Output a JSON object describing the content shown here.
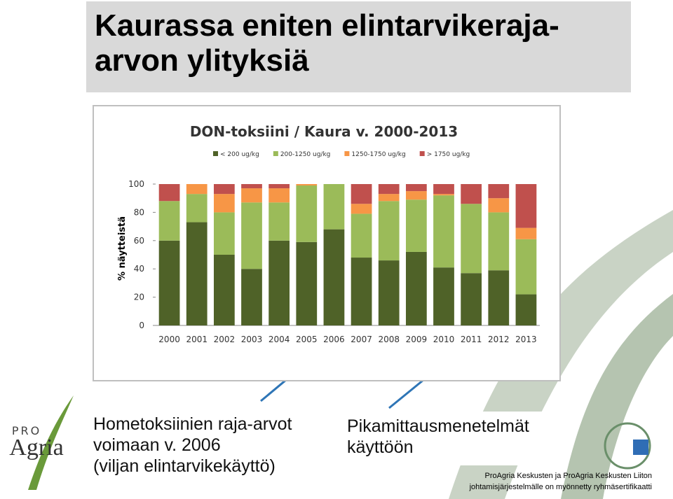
{
  "slide": {
    "title": "Kaurassa eniten elintarvikeraja-arvon ylityksiä",
    "note1": [
      "Hometoksiinien raja-arvot",
      "voimaan v. 2006",
      "(viljan elintarvikekäyttö)"
    ],
    "note2": [
      "Pikamittausmenetelmät",
      "käyttöön"
    ],
    "footer": [
      "ProAgria Keskusten ja ProAgria Keskusten Liiton",
      "johtamisjärjestelmälle on myönnetty ryhmäsertifikaatti"
    ],
    "logo": [
      "PRO",
      "Agria"
    ]
  },
  "chart_data": {
    "type": "stacked-bar",
    "title": "DON-toksiini / Kaura v. 2000-2013",
    "ylabel": "% näytteistä",
    "categories": [
      "2000",
      "2001",
      "2002",
      "2003",
      "2004",
      "2005",
      "2006",
      "2007",
      "2008",
      "2009",
      "2010",
      "2011",
      "2012",
      "2013"
    ],
    "series": [
      {
        "name": "< 200 ug/kg",
        "color": "#4f6228",
        "values": [
          60,
          73,
          50,
          40,
          60,
          59,
          68,
          48,
          46,
          52,
          41,
          37,
          39,
          22
        ]
      },
      {
        "name": "200-1250 ug/kg",
        "color": "#9bbb59",
        "values": [
          28,
          20,
          30,
          47,
          27,
          40,
          32,
          31,
          42,
          37,
          51,
          49,
          41,
          39
        ]
      },
      {
        "name": "1250-1750 ug/kg",
        "color": "#f79646",
        "values": [
          0,
          7,
          13,
          10,
          10,
          1,
          0,
          7,
          5,
          6,
          1,
          0,
          10,
          8
        ]
      },
      {
        "name": "> 1750 ug/kg",
        "color": "#c0504d",
        "values": [
          12,
          0,
          7,
          3,
          3,
          0,
          0,
          14,
          7,
          5,
          7,
          14,
          10,
          31
        ]
      }
    ],
    "ylim": [
      0,
      100
    ],
    "yticks": [
      0,
      20,
      40,
      60,
      80,
      100
    ],
    "legend": "top"
  }
}
